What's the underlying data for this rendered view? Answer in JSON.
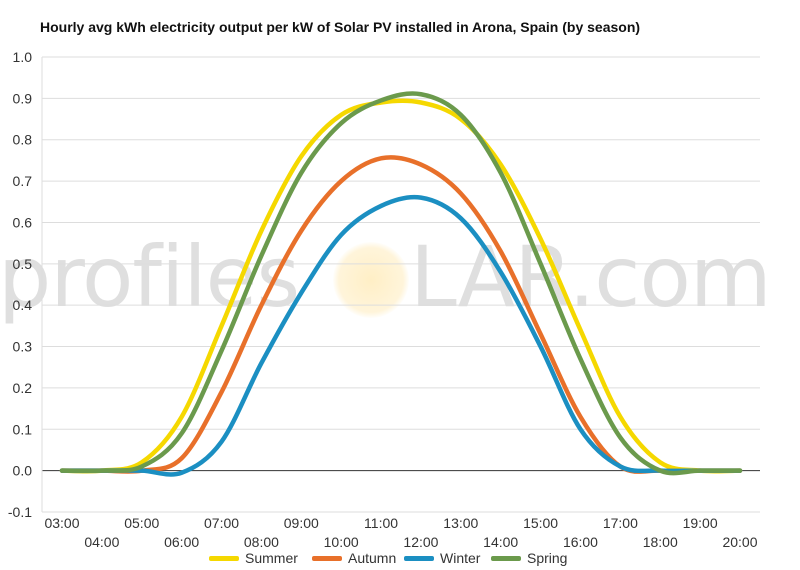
{
  "chart_data": {
    "type": "line",
    "title": "Hourly avg kWh electricity output per kW of Solar PV installed in Arona, Spain (by season)",
    "x": [
      "03:00",
      "04:00",
      "05:00",
      "06:00",
      "07:00",
      "08:00",
      "09:00",
      "10:00",
      "11:00",
      "12:00",
      "13:00",
      "14:00",
      "15:00",
      "16:00",
      "17:00",
      "18:00",
      "19:00",
      "20:00"
    ],
    "ylim": [
      -0.1,
      1.0
    ],
    "yticks": [
      "-0.1",
      "0.0",
      "0.1",
      "0.2",
      "0.3",
      "0.4",
      "0.5",
      "0.6",
      "0.7",
      "0.8",
      "0.9",
      "1.0"
    ],
    "grid": true,
    "legend_position": "bottom",
    "series": [
      {
        "name": "Summer",
        "color": "#f5d800",
        "values": [
          0.0,
          0.0,
          0.02,
          0.13,
          0.35,
          0.58,
          0.76,
          0.86,
          0.89,
          0.89,
          0.85,
          0.74,
          0.56,
          0.34,
          0.13,
          0.02,
          0.0,
          0.0
        ]
      },
      {
        "name": "Autumn",
        "color": "#e8702a",
        "values": [
          0.0,
          0.0,
          0.0,
          0.03,
          0.19,
          0.4,
          0.58,
          0.7,
          0.755,
          0.74,
          0.67,
          0.53,
          0.33,
          0.13,
          0.01,
          0.0,
          0.0,
          0.0
        ]
      },
      {
        "name": "Winter",
        "color": "#1b8fc2",
        "values": [
          0.0,
          0.0,
          0.0,
          -0.005,
          0.07,
          0.26,
          0.43,
          0.57,
          0.64,
          0.66,
          0.61,
          0.48,
          0.3,
          0.1,
          0.01,
          0.0,
          0.0,
          0.0
        ]
      },
      {
        "name": "Spring",
        "color": "#6b9a4c",
        "values": [
          0.0,
          0.0,
          0.01,
          0.09,
          0.29,
          0.52,
          0.72,
          0.84,
          0.895,
          0.91,
          0.86,
          0.72,
          0.5,
          0.27,
          0.08,
          0.0,
          0.0,
          0.0
        ]
      }
    ]
  },
  "watermark": {
    "left": "profiles",
    "right": "LAR.com"
  },
  "colors": {
    "grid": "#dddddd",
    "zero_line": "#333333",
    "axis_text": "#333333"
  }
}
